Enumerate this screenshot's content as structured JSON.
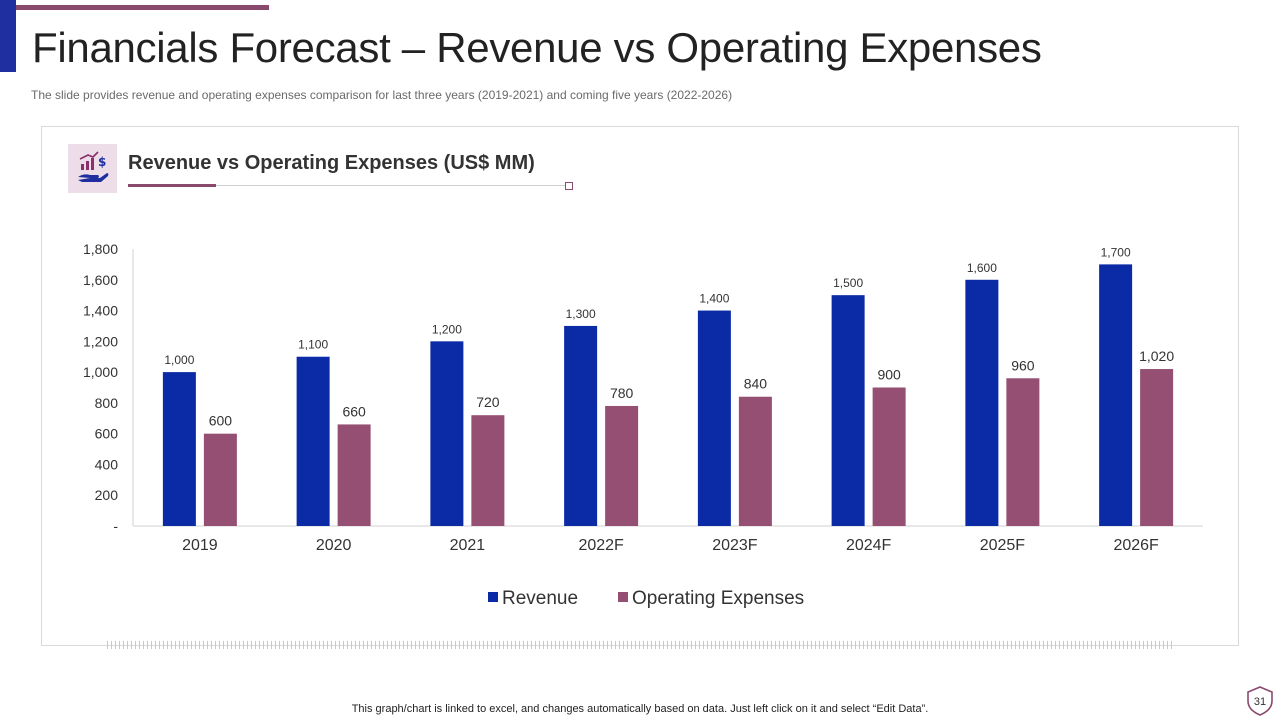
{
  "slide": {
    "title": "Financials Forecast – Revenue vs Operating Expenses",
    "subtitle": "The slide provides  revenue  and operating  expenses  comparison for last three  years (2019-2021)  and coming five  years (2022-2026)",
    "footer": "This graph/chart is linked to excel,  and changes automatically based on data. Just left click on it and select “Edit Data”.",
    "page_number": "31"
  },
  "colors": {
    "revenue": "#0a2aa6",
    "expenses": "#954f72",
    "accent": "#8a4a6e"
  },
  "icons": {
    "chart_icon": "hand-money-chart-icon",
    "page_badge": "shield-icon"
  },
  "chart_data": {
    "type": "bar",
    "title": "Revenue vs Operating Expenses (US$ MM)",
    "categories": [
      "2019",
      "2020",
      "2021",
      "2022F",
      "2023F",
      "2024F",
      "2025F",
      "2026F"
    ],
    "series": [
      {
        "name": "Revenue",
        "values": [
          1000,
          1100,
          1200,
          1300,
          1400,
          1500,
          1600,
          1700
        ],
        "labels": [
          "1,000",
          "1,100",
          "1,200",
          "1,300",
          "1,400",
          "1,500",
          "1,600",
          "1,700"
        ]
      },
      {
        "name": "Operating Expenses",
        "values": [
          600,
          660,
          720,
          780,
          840,
          900,
          960,
          1020
        ],
        "labels": [
          "600",
          "660",
          "720",
          "780",
          "840",
          "900",
          "960",
          "1,020"
        ]
      }
    ],
    "y_ticks": [
      "-",
      "200",
      "400",
      "600",
      "800",
      "1,000",
      "1,200",
      "1,400",
      "1,600",
      "1,800"
    ],
    "ylim": [
      0,
      1800
    ],
    "grid": false,
    "legend_position": "bottom"
  }
}
